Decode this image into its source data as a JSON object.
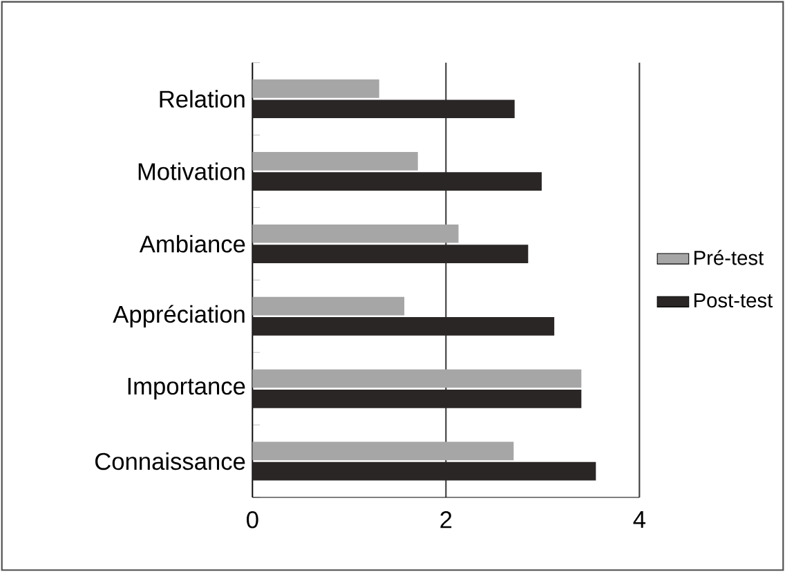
{
  "chart_data": {
    "type": "bar",
    "orientation": "horizontal",
    "categories": [
      "Relation",
      "Motivation",
      "Ambiance",
      "Appréciation",
      "Importance",
      "Connaissance"
    ],
    "series": [
      {
        "name": "Pré-test",
        "color": "#a6a6a6",
        "values": [
          1.31,
          1.71,
          2.13,
          1.57,
          3.4,
          2.7
        ]
      },
      {
        "name": "Post-test",
        "color": "#2b2626",
        "values": [
          2.71,
          2.99,
          2.85,
          3.12,
          3.4,
          3.55
        ]
      }
    ],
    "xlim": [
      0,
      4
    ],
    "xticks": [
      0,
      2,
      4
    ],
    "grid": "x",
    "legend": "right"
  }
}
